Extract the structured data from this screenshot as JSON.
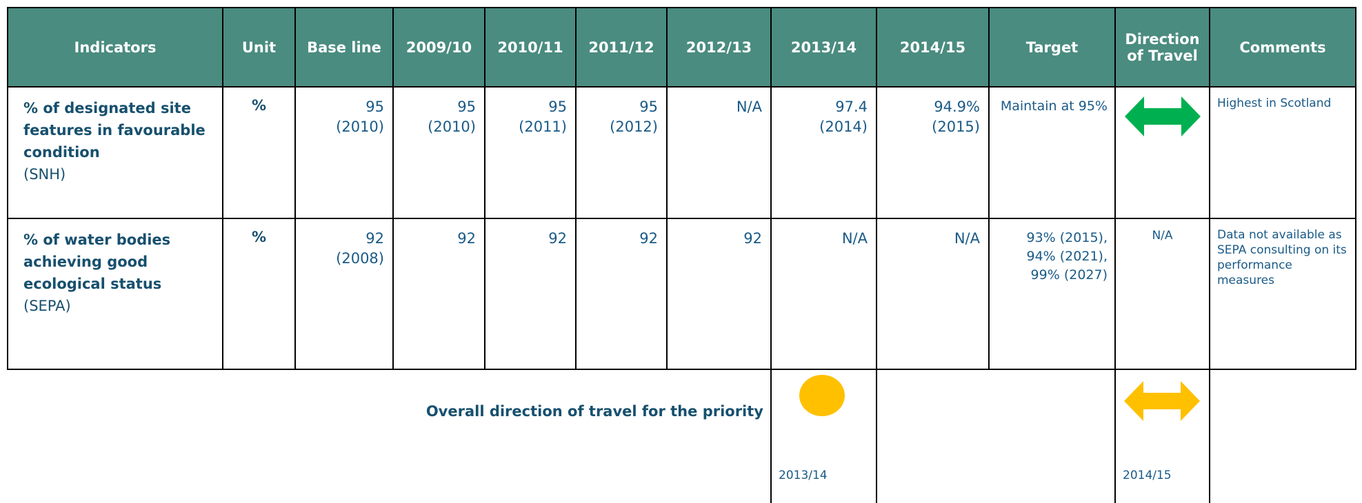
{
  "header": {
    "columns": [
      "Indicators",
      "Unit",
      "Base line",
      "2009/10",
      "2010/11",
      "2011/12",
      "2012/13",
      "2013/14",
      "2014/15",
      "Target",
      "Direction of Travel",
      "Comments"
    ]
  },
  "rows": [
    {
      "indicator": "% of designated site features in favourable condition",
      "source": "(SNH)",
      "unit": "%",
      "values": [
        "95\n(2010)",
        "95\n(2010)",
        "95\n(2011)",
        "95\n(2012)",
        "N/A",
        "97.4\n(2014)",
        "94.9%\n(2015)"
      ],
      "target": "Maintain at 95%",
      "comments": "Highest in Scotland"
    },
    {
      "indicator": "% of water bodies achieving good ecological status",
      "source": "(SEPA)",
      "unit": "%",
      "values": [
        "92\n(2008)",
        "92",
        "92",
        "92",
        "92",
        "N/A",
        "N/A"
      ],
      "target": "93% (2015),\n94% (2021),\n99% (2027)",
      "direction": "N/A",
      "comments": "Data not available as SEPA consulting on its performance measures"
    }
  ],
  "footer": {
    "label": "Overall direction of travel for the priority",
    "period_1": "2013/14",
    "period_2": "2014/15"
  }
}
